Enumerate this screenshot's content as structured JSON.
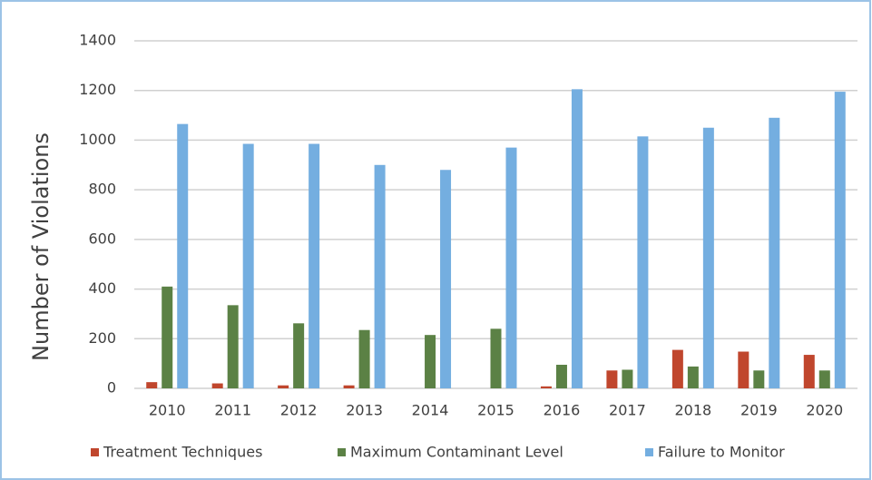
{
  "chart_data": {
    "type": "bar",
    "y_label": "Number of Violations",
    "categories": [
      "2010",
      "2011",
      "2012",
      "2013",
      "2014",
      "2015",
      "2016",
      "2017",
      "2018",
      "2019",
      "2020"
    ],
    "series": [
      {
        "name": "Treatment Techniques",
        "color": "#c0462d",
        "values": [
          25,
          20,
          12,
          12,
          0,
          0,
          8,
          72,
          155,
          148,
          135
        ]
      },
      {
        "name": "Maximum Contaminant Level",
        "color": "#5b8145",
        "values": [
          410,
          335,
          262,
          235,
          215,
          240,
          95,
          75,
          88,
          72,
          72
        ]
      },
      {
        "name": "Failure to Monitor",
        "color": "#74aee0",
        "values": [
          1065,
          985,
          985,
          900,
          880,
          970,
          1205,
          1015,
          1050,
          1090,
          1195
        ]
      }
    ],
    "ylim": [
      0,
      1400
    ],
    "yticks": [
      0,
      200,
      400,
      600,
      800,
      1000,
      1200,
      1400
    ],
    "grid": true,
    "legend": "bottom"
  }
}
